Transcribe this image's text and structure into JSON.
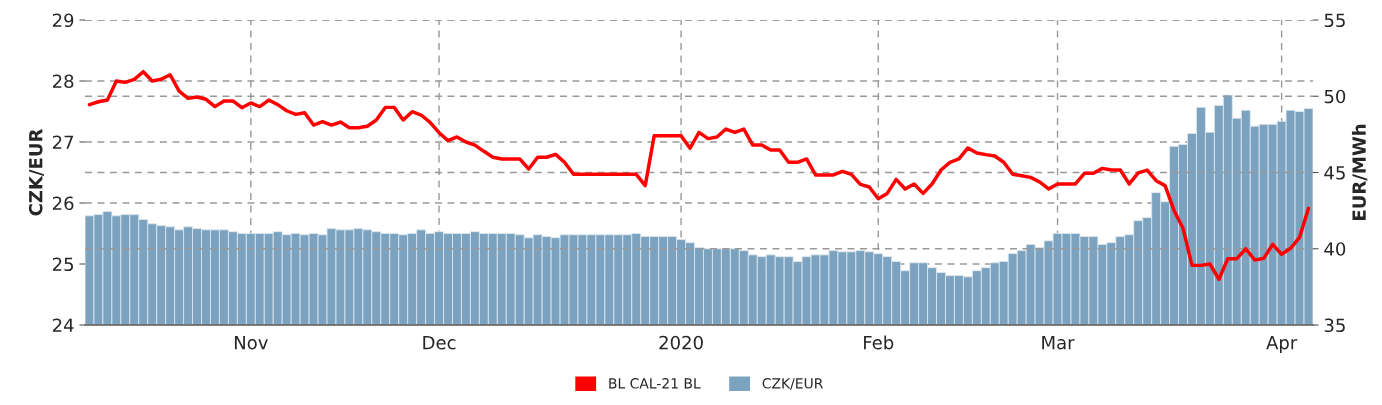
{
  "chart_data": {
    "type": "bar",
    "ylabel": "CZK/EUR",
    "y2label": "EUR/MWh",
    "categories": [
      null,
      null,
      null,
      null,
      null,
      null,
      null,
      null,
      null,
      null,
      null,
      null,
      null,
      null,
      null,
      null,
      null,
      null,
      "Nov",
      null,
      null,
      null,
      null,
      null,
      null,
      null,
      null,
      null,
      null,
      null,
      null,
      null,
      null,
      null,
      null,
      null,
      null,
      null,
      null,
      "Dec",
      null,
      null,
      null,
      null,
      null,
      null,
      null,
      null,
      null,
      null,
      null,
      null,
      null,
      null,
      null,
      null,
      null,
      null,
      null,
      null,
      null,
      null,
      null,
      null,
      null,
      null,
      "2020",
      null,
      null,
      null,
      null,
      null,
      null,
      null,
      null,
      null,
      null,
      null,
      null,
      null,
      null,
      null,
      null,
      null,
      null,
      null,
      null,
      null,
      "Feb",
      null,
      null,
      null,
      null,
      null,
      null,
      null,
      null,
      null,
      null,
      null,
      null,
      null,
      null,
      null,
      null,
      null,
      null,
      null,
      "Mar",
      null,
      null,
      null,
      null,
      null,
      null,
      null,
      null,
      null,
      null,
      null,
      null,
      null,
      null,
      null,
      null,
      null,
      null,
      null,
      null,
      null,
      null,
      null,
      null,
      "Apr",
      null,
      null,
      null
    ],
    "series": [
      {
        "name": "BL CAL-21 BL",
        "type": "line",
        "axis": "y2",
        "color": "#ff0000",
        "values": [
          49.45,
          49.64,
          49.75,
          51.0,
          50.91,
          51.11,
          51.61,
          51.0,
          51.11,
          51.41,
          50.34,
          49.86,
          49.95,
          49.8,
          49.32,
          49.69,
          49.69,
          49.25,
          49.56,
          49.32,
          49.75,
          49.45,
          49.05,
          48.81,
          48.92,
          48.11,
          48.33,
          48.11,
          48.31,
          47.94,
          47.94,
          48.03,
          48.44,
          49.27,
          49.27,
          48.44,
          48.99,
          48.77,
          48.29,
          47.61,
          47.09,
          47.33,
          47.0,
          46.8,
          46.39,
          46.0,
          45.89,
          45.89,
          45.89,
          45.23,
          46.0,
          46.0,
          46.19,
          45.67,
          44.88,
          44.88,
          44.88,
          44.88,
          44.88,
          44.88,
          44.88,
          44.88,
          44.14,
          47.41,
          47.41,
          47.41,
          47.41,
          46.59,
          47.63,
          47.22,
          47.33,
          47.85,
          47.63,
          47.85,
          46.8,
          46.8,
          46.48,
          46.48,
          45.67,
          45.67,
          45.89,
          44.84,
          44.84,
          44.84,
          45.08,
          44.88,
          44.22,
          44.05,
          43.28,
          43.63,
          44.55,
          43.92,
          44.25,
          43.63,
          44.25,
          45.16,
          45.67,
          45.89,
          46.61,
          46.28,
          46.17,
          46.08,
          45.67,
          44.88,
          44.79,
          44.68,
          44.38,
          43.92,
          44.25,
          44.25,
          44.25,
          44.95,
          44.95,
          45.27,
          45.16,
          45.16,
          44.25,
          44.97,
          45.16,
          44.46,
          44.14,
          42.5,
          41.34,
          38.91,
          38.91,
          39.0,
          38.0,
          39.35,
          39.35,
          40.0,
          39.26,
          39.37,
          40.29,
          39.64,
          40.03,
          40.75,
          42.65
        ]
      },
      {
        "name": "CZK/EUR",
        "axis": "y",
        "color": "#7ba3c0",
        "values": [
          25.79,
          25.81,
          25.86,
          25.79,
          25.81,
          25.81,
          25.73,
          25.66,
          25.63,
          25.61,
          25.56,
          25.61,
          25.58,
          25.56,
          25.56,
          25.56,
          25.53,
          25.5,
          25.5,
          25.5,
          25.5,
          25.53,
          25.48,
          25.5,
          25.48,
          25.5,
          25.48,
          25.58,
          25.56,
          25.56,
          25.58,
          25.56,
          25.53,
          25.5,
          25.5,
          25.48,
          25.5,
          25.56,
          25.5,
          25.53,
          25.5,
          25.5,
          25.5,
          25.53,
          25.5,
          25.5,
          25.5,
          25.5,
          25.48,
          25.43,
          25.48,
          25.45,
          25.43,
          25.48,
          25.48,
          25.48,
          25.48,
          25.48,
          25.48,
          25.48,
          25.48,
          25.5,
          25.45,
          25.45,
          25.45,
          25.45,
          25.4,
          25.35,
          25.27,
          25.25,
          25.25,
          25.25,
          25.25,
          25.22,
          25.15,
          25.12,
          25.15,
          25.12,
          25.12,
          25.04,
          25.12,
          25.15,
          25.15,
          25.22,
          25.2,
          25.2,
          25.22,
          25.2,
          25.17,
          25.12,
          25.04,
          24.89,
          25.02,
          25.02,
          24.94,
          24.86,
          24.81,
          24.81,
          24.79,
          24.89,
          24.94,
          25.02,
          25.04,
          25.17,
          25.22,
          25.32,
          25.27,
          25.38,
          25.5,
          25.5,
          25.5,
          25.45,
          25.45,
          25.32,
          25.35,
          25.45,
          25.48,
          25.71,
          25.76,
          26.17,
          26.02,
          26.93,
          26.96,
          27.14,
          27.57,
          27.16,
          27.6,
          27.77,
          27.39,
          27.52,
          27.26,
          27.29,
          27.29,
          27.34,
          27.52,
          27.5,
          27.55
        ]
      }
    ],
    "ylim": [
      24,
      29
    ],
    "yticks": [
      24,
      25,
      26,
      27,
      28,
      29
    ],
    "y2lim": [
      35,
      55
    ],
    "y2ticks": [
      35,
      40,
      45,
      50,
      55
    ],
    "grid": true,
    "legend": "bottom",
    "marker": "none",
    "line_style": "solid"
  }
}
